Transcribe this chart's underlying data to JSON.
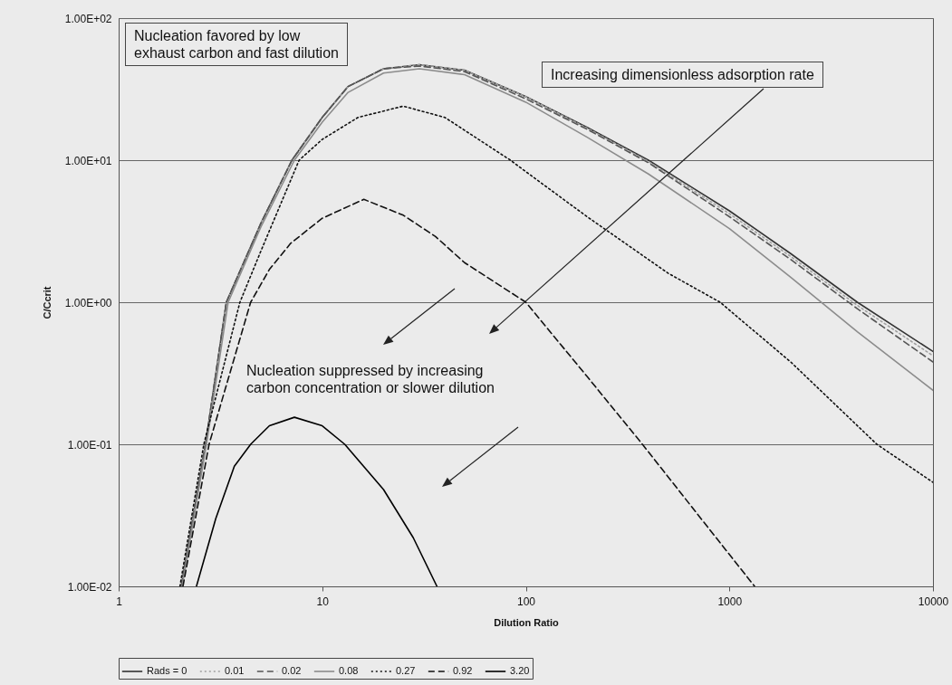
{
  "chart_data": {
    "type": "line",
    "xlabel": "Dilution Ratio",
    "ylabel": "C/Ccrit",
    "log": "xy",
    "grid": "y",
    "legend": "bottom",
    "xlim": [
      1,
      10000
    ],
    "ylim": [
      0.01,
      100
    ],
    "xticks": [
      1,
      10,
      100,
      1000,
      10000
    ],
    "yticks": [
      {
        "value": 0.01,
        "label": "1.00E-02"
      },
      {
        "value": 0.1,
        "label": "1.00E-01"
      },
      {
        "value": 1,
        "label": "1.00E+00"
      },
      {
        "value": 10,
        "label": "1.00E+01"
      },
      {
        "value": 100,
        "label": "1.00E+02"
      }
    ],
    "annotations": [
      "Nucleation favored by low\nexhaust carbon and fast dilution",
      "Increasing dimensionless adsorption rate",
      "Nucleation suppressed by increasing\ncarbon concentration or slower dilution"
    ],
    "series": [
      {
        "name": "Rads = 0",
        "color": "#333333",
        "line_style": "solid",
        "x": [
          2.03,
          2.67,
          3.38,
          5,
          7.1,
          10,
          13.4,
          20,
          30,
          50,
          100,
          200,
          400,
          1000,
          2000,
          4250,
          10000
        ],
        "values": [
          0.01,
          0.1,
          1,
          3.6,
          10,
          20,
          33,
          44,
          47,
          43,
          28,
          17,
          10,
          4.4,
          2.2,
          1,
          0.45
        ]
      },
      {
        "name": "0.01",
        "color": "#a0a0a0",
        "line_style": "dotted",
        "x": [
          2.03,
          2.67,
          3.38,
          5,
          7.1,
          10,
          13.4,
          20,
          30,
          50,
          100,
          200,
          400,
          1000,
          2000,
          4250,
          10000
        ],
        "values": [
          0.01,
          0.1,
          1,
          3.6,
          10,
          20,
          33,
          44,
          47,
          43,
          28,
          16.8,
          9.8,
          4.2,
          2.1,
          0.95,
          0.42
        ]
      },
      {
        "name": "0.02",
        "color": "#555555",
        "line_style": "dashed",
        "x": [
          2.03,
          2.67,
          3.38,
          5,
          7.1,
          10,
          13.4,
          20,
          30,
          50,
          100,
          200,
          400,
          1000,
          2000,
          4250,
          10000
        ],
        "values": [
          0.01,
          0.1,
          1,
          3.6,
          10,
          20,
          33,
          44,
          46,
          42,
          27,
          16.5,
          9.6,
          4.0,
          2.0,
          0.9,
          0.38
        ]
      },
      {
        "name": "0.08",
        "color": "#8c8c8c",
        "line_style": "solid",
        "x": [
          2.05,
          2.7,
          3.45,
          5,
          7.3,
          10,
          13.4,
          20,
          30,
          50,
          100,
          200,
          400,
          1000,
          2000,
          4250,
          10000
        ],
        "values": [
          0.01,
          0.1,
          1,
          3.4,
          10,
          18.5,
          30,
          41,
          44,
          40,
          25.6,
          14.5,
          8,
          3.3,
          1.5,
          0.62,
          0.24
        ]
      },
      {
        "name": "0.27",
        "color": "#111111",
        "line_style": "dotted",
        "x": [
          2.0,
          2.62,
          3.94,
          5,
          7.7,
          10,
          15,
          25,
          40,
          84,
          100,
          200,
          500,
          900,
          2000,
          5300,
          10000
        ],
        "values": [
          0.01,
          0.1,
          1,
          2.3,
          10,
          14,
          20,
          24,
          20,
          10,
          8.3,
          4,
          1.6,
          1,
          0.38,
          0.1,
          0.054
        ]
      },
      {
        "name": "0.92",
        "color": "#111111",
        "line_style": "dashed",
        "x": [
          2.07,
          2.78,
          4.45,
          5.5,
          7,
          10,
          16,
          25,
          36,
          50,
          100,
          200,
          374,
          700,
          1330
        ],
        "values": [
          0.01,
          0.1,
          1,
          1.7,
          2.6,
          3.9,
          5.3,
          4.1,
          2.9,
          1.9,
          1.0,
          0.3,
          0.1,
          0.032,
          0.01
        ]
      },
      {
        "name": "3.20",
        "color": "#000000",
        "line_style": "solid",
        "x": [
          2.41,
          3,
          3.7,
          4.45,
          5.5,
          7.3,
          10,
          12.9,
          20,
          28,
          36.6
        ],
        "values": [
          0.01,
          0.03,
          0.07,
          0.1,
          0.135,
          0.155,
          0.135,
          0.1,
          0.048,
          0.022,
          0.01
        ]
      }
    ]
  }
}
